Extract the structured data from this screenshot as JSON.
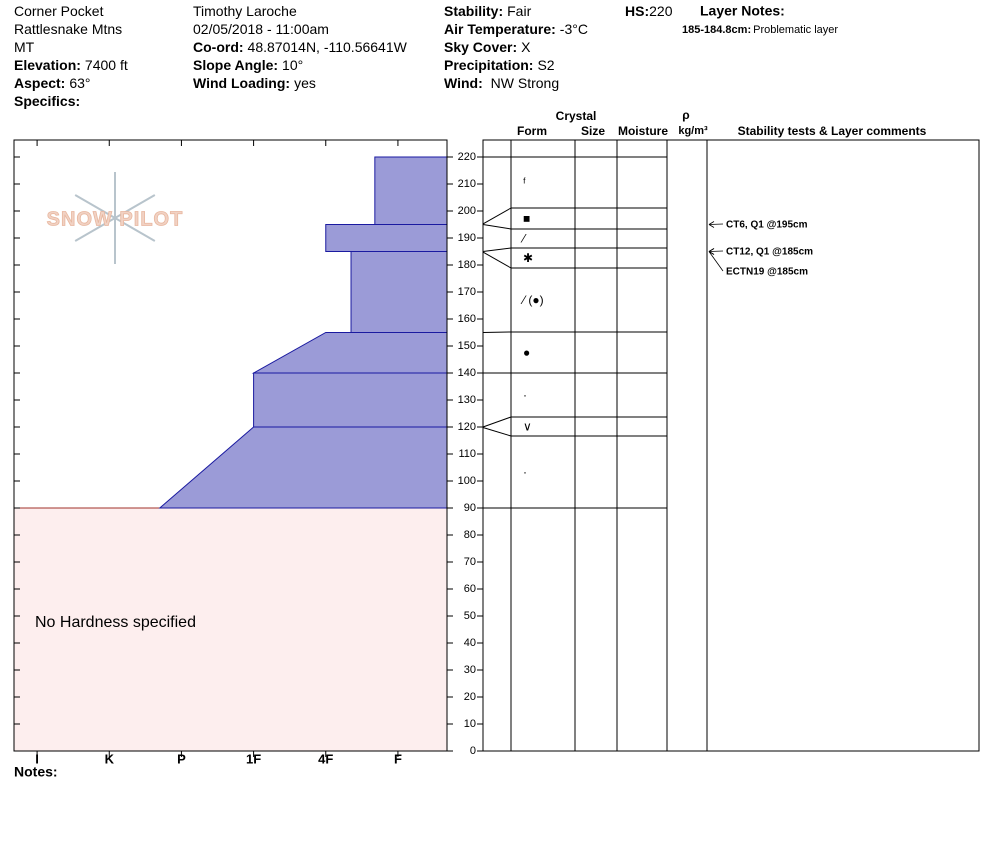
{
  "header": {
    "col1": [
      {
        "value": "Corner Pocket"
      },
      {
        "value": "Rattlesnake Mtns"
      },
      {
        "value": "MT"
      },
      {
        "label": "Elevation:",
        "value": "7400 ft"
      },
      {
        "label": "Aspect:",
        "value": "63°"
      },
      {
        "label": "Specifics:"
      }
    ],
    "col2": [
      {
        "value": "Timothy  Laroche"
      },
      {
        "value": "02/05/2018 - 11:00am"
      },
      {
        "label": "Co-ord:",
        "value": "48.87014N, -110.56641W"
      },
      {
        "label": "Slope Angle:",
        "value": "10°"
      },
      {
        "label": "Wind Loading:",
        "value": "yes"
      }
    ],
    "col3": [
      {
        "label": "Stability:",
        "value": "Fair"
      },
      {
        "label": "Air Temperature:",
        "value": "-3°C"
      },
      {
        "label": "Sky Cover:",
        "value": "X"
      },
      {
        "label": "Precipitation:",
        "value": "S2"
      },
      {
        "label": "Wind:",
        "value": " NW Strong"
      }
    ],
    "hs": {
      "label": "HS:",
      "value": "220"
    },
    "layer_notes": {
      "label": "Layer Notes:",
      "notes": [
        {
          "label": "185-184.8cm:",
          "value": "Problematic layer"
        }
      ]
    }
  },
  "chart_data": {
    "type": "snow-profile",
    "logo": "SNOW PILOT",
    "ylim": [
      0,
      220
    ],
    "yticks": [
      0,
      10,
      20,
      30,
      40,
      50,
      60,
      70,
      80,
      90,
      100,
      110,
      120,
      130,
      140,
      150,
      160,
      170,
      180,
      190,
      200,
      210,
      220
    ],
    "xlim": [
      -0.32,
      5.68
    ],
    "xticks": [
      {
        "value": 0,
        "label": "I"
      },
      {
        "value": 1,
        "label": "K"
      },
      {
        "value": 2,
        "label": "P"
      },
      {
        "value": 3,
        "label": "1F"
      },
      {
        "value": 4,
        "label": "4F"
      },
      {
        "value": 5,
        "label": "F"
      }
    ],
    "color": "#9b9bd7",
    "hardness_layers": [
      {
        "top": 220,
        "bottom": 195,
        "hardness_top": 4.68,
        "hardness_bottom": 4.68
      },
      {
        "top": 195,
        "bottom": 185,
        "hardness_top": 4.0,
        "hardness_bottom": 4.0
      },
      {
        "top": 185,
        "bottom": 155,
        "hardness_top": 4.35,
        "hardness_bottom": 4.35
      },
      {
        "top": 155,
        "bottom": 140,
        "hardness_top": 4.0,
        "hardness_bottom": 3.0
      },
      {
        "top": 140,
        "bottom": 120,
        "hardness_top": 3.0,
        "hardness_bottom": 3.0
      },
      {
        "top": 120,
        "bottom": 90,
        "hardness_top": 3.0,
        "hardness_bottom": 1.7
      }
    ],
    "no_hardness": {
      "top": 90,
      "bottom": 0,
      "label": "No Hardness specified"
    },
    "table_headers": {
      "crystal": "Crystal",
      "form": "Form",
      "size": "Size",
      "moisture": "Moisture",
      "rho": "ρ",
      "density": "kg/m³",
      "comments": "Stability tests & Layer comments"
    },
    "layers": [
      {
        "top": 220,
        "bottom": 195.2,
        "form": "ᶠ"
      },
      {
        "top": 195.2,
        "bottom": 195,
        "form": "■"
      },
      {
        "top": 195,
        "bottom": 185,
        "form": "⁄"
      },
      {
        "top": 185,
        "bottom": 184.8,
        "form": "✱"
      },
      {
        "top": 184.8,
        "bottom": 155,
        "form": "⁄ (●)"
      },
      {
        "top": 155,
        "bottom": 140,
        "form": "●"
      },
      {
        "top": 140,
        "bottom": 120,
        "form": "·"
      },
      {
        "top": 120,
        "bottom": 119.8,
        "form": "∨"
      },
      {
        "top": 119.8,
        "bottom": 90,
        "form": "·"
      }
    ],
    "tests": [
      {
        "depth": 195,
        "label": "CT6, Q1 @195cm"
      },
      {
        "depth": 185,
        "label": "CT12, Q1 @185cm"
      },
      {
        "depth": 185,
        "label": "ECTN19 @185cm"
      }
    ],
    "notes": "Notes:"
  }
}
